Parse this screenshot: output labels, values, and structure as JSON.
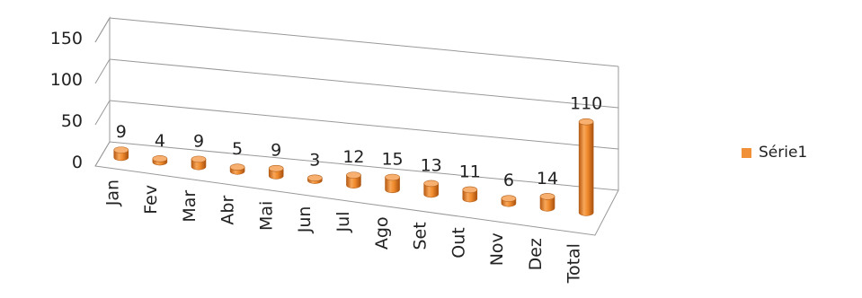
{
  "chart_data": {
    "type": "bar",
    "style": "3d-cylinder",
    "title": "",
    "xlabel": "",
    "ylabel": "",
    "categories": [
      "Jan",
      "Fev",
      "Mar",
      "Abr",
      "Mai",
      "Jun",
      "Jul",
      "Ago",
      "Set",
      "Out",
      "Nov",
      "Dez",
      "Total"
    ],
    "series": [
      {
        "name": "Série1",
        "values": [
          9,
          4,
          9,
          5,
          9,
          3,
          12,
          15,
          13,
          11,
          6,
          14,
          110
        ],
        "color": "#f0913a"
      }
    ],
    "y_ticks": [
      "0",
      "50",
      "100",
      "150"
    ],
    "ylim": [
      0,
      150
    ],
    "data_labels": true,
    "grid": true,
    "legend_position": "right"
  }
}
